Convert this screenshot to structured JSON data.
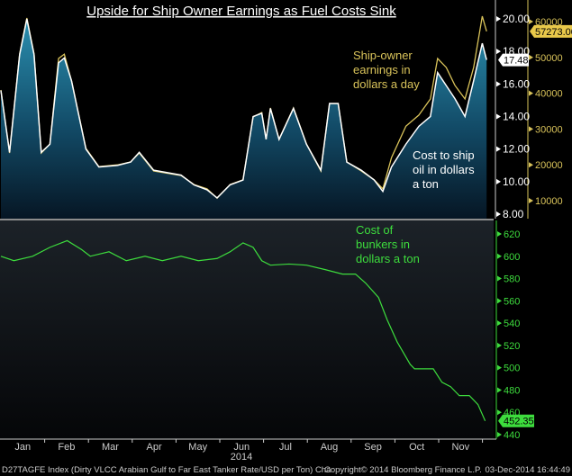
{
  "chart_data": [
    {
      "type": "area",
      "title": "Upside for Ship Owner Earnings as Fuel Costs Sink",
      "panel": "top",
      "x_unit": "day of 2014",
      "series": [
        {
          "name": "Cost to ship oil in dollars a ton",
          "axis": "left-inner",
          "color": "#ffffff",
          "last_value": "17.48",
          "points": [
            [
              0,
              15.6
            ],
            [
              6,
              11.8
            ],
            [
              13,
              17.8
            ],
            [
              18,
              20.0
            ],
            [
              23,
              17.8
            ],
            [
              28,
              11.8
            ],
            [
              34,
              12.3
            ],
            [
              40,
              17.3
            ],
            [
              44,
              17.6
            ],
            [
              49,
              16.2
            ],
            [
              59,
              12.0
            ],
            [
              68,
              10.9
            ],
            [
              81,
              11.0
            ],
            [
              90,
              11.2
            ],
            [
              96,
              11.8
            ],
            [
              106,
              10.7
            ],
            [
              125,
              10.4
            ],
            [
              134,
              9.8
            ],
            [
              143,
              9.5
            ],
            [
              150,
              9.0
            ],
            [
              159,
              9.8
            ],
            [
              168,
              10.1
            ],
            [
              175,
              14.0
            ],
            [
              181,
              14.2
            ],
            [
              184,
              12.6
            ],
            [
              187,
              14.5
            ],
            [
              193,
              12.6
            ],
            [
              203,
              14.5
            ],
            [
              212,
              12.3
            ],
            [
              222,
              10.7
            ],
            [
              228,
              14.8
            ],
            [
              234,
              14.8
            ],
            [
              240,
              11.2
            ],
            [
              250,
              10.7
            ],
            [
              259,
              10.1
            ],
            [
              265,
              9.4
            ],
            [
              271,
              10.9
            ],
            [
              281,
              12.3
            ],
            [
              290,
              13.4
            ],
            [
              298,
              14.0
            ],
            [
              303,
              16.7
            ],
            [
              309,
              15.9
            ],
            [
              315,
              15.1
            ],
            [
              322,
              14.0
            ],
            [
              328,
              16.2
            ],
            [
              334,
              18.5
            ],
            [
              337,
              17.48
            ]
          ]
        },
        {
          "name": "Ship-owner earnings in dollars a day",
          "axis": "right-outer",
          "color": "#d9c35a",
          "last_value": "57273.00",
          "points": [
            [
              0,
              40900
            ],
            [
              6,
              23300
            ],
            [
              13,
              51000
            ],
            [
              18,
              61000
            ],
            [
              23,
              51000
            ],
            [
              28,
              23300
            ],
            [
              34,
              25800
            ],
            [
              40,
              49700
            ],
            [
              44,
              50900
            ],
            [
              49,
              43400
            ],
            [
              59,
              24600
            ],
            [
              68,
              19500
            ],
            [
              81,
              20000
            ],
            [
              90,
              20800
            ],
            [
              96,
              23300
            ],
            [
              106,
              18300
            ],
            [
              125,
              17000
            ],
            [
              134,
              14500
            ],
            [
              143,
              13300
            ],
            [
              150,
              10700
            ],
            [
              159,
              14500
            ],
            [
              168,
              15800
            ],
            [
              175,
              33400
            ],
            [
              181,
              34600
            ],
            [
              184,
              27100
            ],
            [
              187,
              35900
            ],
            [
              193,
              27100
            ],
            [
              203,
              35900
            ],
            [
              212,
              25800
            ],
            [
              222,
              18300
            ],
            [
              228,
              37100
            ],
            [
              234,
              37100
            ],
            [
              240,
              20800
            ],
            [
              250,
              18300
            ],
            [
              259,
              15800
            ],
            [
              265,
              13300
            ],
            [
              271,
              22000
            ],
            [
              281,
              30800
            ],
            [
              290,
              33900
            ],
            [
              298,
              38400
            ],
            [
              303,
              49700
            ],
            [
              309,
              47200
            ],
            [
              315,
              42200
            ],
            [
              322,
              38400
            ],
            [
              328,
              47200
            ],
            [
              334,
              61500
            ],
            [
              337,
              57273
            ]
          ]
        }
      ],
      "y_left": {
        "range": [
          8,
          20
        ],
        "ticks": [
          "8.00",
          "10.00",
          "12.00",
          "14.00",
          "16.00",
          "18.00",
          "20.00"
        ]
      },
      "y_right": {
        "range": [
          10000,
          60000
        ],
        "ticks": [
          "10000",
          "20000",
          "30000",
          "40000",
          "50000",
          "60000"
        ]
      },
      "annotations": {
        "earnings": [
          "Ship-owner",
          "earnings in",
          "dollars a day"
        ],
        "cost": [
          "Cost to ship",
          "oil in dollars",
          "a ton"
        ]
      }
    },
    {
      "type": "line",
      "panel": "bottom",
      "x_unit": "day of 2014",
      "series": [
        {
          "name": "Cost of bunkers in dollars a ton",
          "color": "#3ddc3d",
          "last_value": "452.35",
          "points": [
            [
              0,
              600
            ],
            [
              9,
              596
            ],
            [
              22,
              600
            ],
            [
              34,
              608
            ],
            [
              46,
              614
            ],
            [
              56,
              606
            ],
            [
              62,
              600
            ],
            [
              75,
              604
            ],
            [
              87,
              596
            ],
            [
              100,
              600
            ],
            [
              112,
              596
            ],
            [
              125,
              600
            ],
            [
              137,
              596
            ],
            [
              150,
              598
            ],
            [
              159,
              604
            ],
            [
              168,
              612
            ],
            [
              175,
              608
            ],
            [
              181,
              596
            ],
            [
              187,
              592
            ],
            [
              200,
              593
            ],
            [
              212,
              592
            ],
            [
              225,
              588
            ],
            [
              237,
              584
            ],
            [
              246,
              584
            ],
            [
              253,
              576
            ],
            [
              262,
              563
            ],
            [
              268,
              543
            ],
            [
              275,
              523
            ],
            [
              284,
              503
            ],
            [
              287,
              499
            ],
            [
              300,
              499
            ],
            [
              306,
              487
            ],
            [
              312,
              483
            ],
            [
              318,
              475
            ],
            [
              325,
              475
            ],
            [
              331,
              467
            ],
            [
              336,
              452.35
            ]
          ]
        }
      ],
      "y_right": {
        "range": [
          440,
          620
        ],
        "ticks": [
          "440",
          "460",
          "480",
          "500",
          "520",
          "540",
          "560",
          "580",
          "600",
          "620"
        ]
      },
      "annotation": [
        "Cost of",
        "bunkers in",
        "dollars a ton"
      ]
    }
  ],
  "x_axis": {
    "months": [
      "Jan",
      "Feb",
      "Mar",
      "Apr",
      "May",
      "Jun",
      "Jul",
      "Aug",
      "Sep",
      "Oct",
      "Nov"
    ],
    "year": "2014"
  },
  "footer": {
    "source": "D27TAGFE Index (Dirty VLCC Arabian Gulf to Far East Tanker Rate/USD per Ton) Cha",
    "copyright": "Copyright© 2014 Bloomberg Finance L.P.",
    "timestamp": "03-Dec-2014 16:44:49"
  }
}
